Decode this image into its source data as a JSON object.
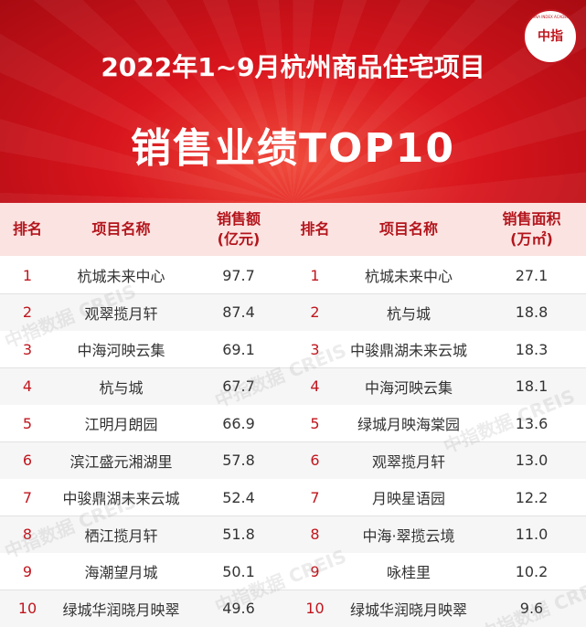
{
  "header": {
    "title_line1": "2022年1~9月杭州商品住宅项目",
    "title_line2": "销售业绩TOP10",
    "logo_main": "中指",
    "logo_ring": "CHINA INDEX ACADEMY"
  },
  "watermark": "中指数据 CREIS",
  "table": {
    "columns": [
      {
        "label": "排名"
      },
      {
        "label": "项目名称"
      },
      {
        "label": "销售额",
        "unit": "(亿元)"
      },
      {
        "label": "排名"
      },
      {
        "label": "项目名称"
      },
      {
        "label": "销售面积",
        "unit": "(万㎡)"
      }
    ],
    "rows": [
      [
        "1",
        "杭城未来中心",
        "97.7",
        "1",
        "杭城未来中心",
        "27.1"
      ],
      [
        "2",
        "观翠揽月轩",
        "87.4",
        "2",
        "杭与城",
        "18.8"
      ],
      [
        "3",
        "中海河映云集",
        "69.1",
        "3",
        "中骏鼎湖未来云城",
        "18.3"
      ],
      [
        "4",
        "杭与城",
        "67.7",
        "4",
        "中海河映云集",
        "18.1"
      ],
      [
        "5",
        "江明月朗园",
        "66.9",
        "5",
        "绿城月映海棠园",
        "13.6"
      ],
      [
        "6",
        "滨江盛元湘湖里",
        "57.8",
        "6",
        "观翠揽月轩",
        "13.0"
      ],
      [
        "7",
        "中骏鼎湖未来云城",
        "52.4",
        "7",
        "月映星语园",
        "12.2"
      ],
      [
        "8",
        "栖江揽月轩",
        "51.8",
        "8",
        "中海·翠揽云境",
        "11.0"
      ],
      [
        "9",
        "海潮望月城",
        "50.1",
        "9",
        "咏桂里",
        "10.2"
      ],
      [
        "10",
        "绿城华润晓月映翠",
        "49.6",
        "10",
        "绿城华润晓月映翠",
        "9.6"
      ]
    ]
  }
}
